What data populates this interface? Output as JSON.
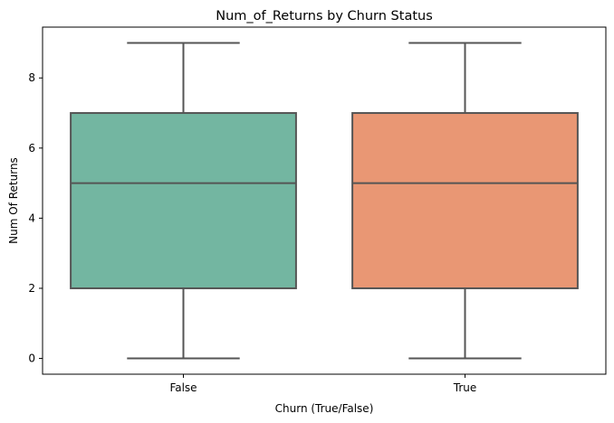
{
  "chart_data": {
    "type": "box",
    "title": "Num_of_Returns by Churn Status",
    "xlabel": "Churn (True/False)",
    "ylabel": "Num Of Returns",
    "categories": [
      "False",
      "True"
    ],
    "boxes": [
      {
        "category": "False",
        "min": 0,
        "q1": 2,
        "median": 5,
        "q3": 7,
        "max": 9,
        "color": "#73b6a1"
      },
      {
        "category": "True",
        "min": 0,
        "q1": 2,
        "median": 5,
        "q3": 7,
        "max": 9,
        "color": "#e99774"
      }
    ],
    "ylim": [
      -0.45,
      9.45
    ],
    "yticks": [
      0,
      2,
      4,
      6,
      8
    ],
    "ytick_labels": [
      "0",
      "2",
      "4",
      "6",
      "8"
    ],
    "grid": false,
    "legend": "none",
    "box_edge_color": "#555555"
  }
}
